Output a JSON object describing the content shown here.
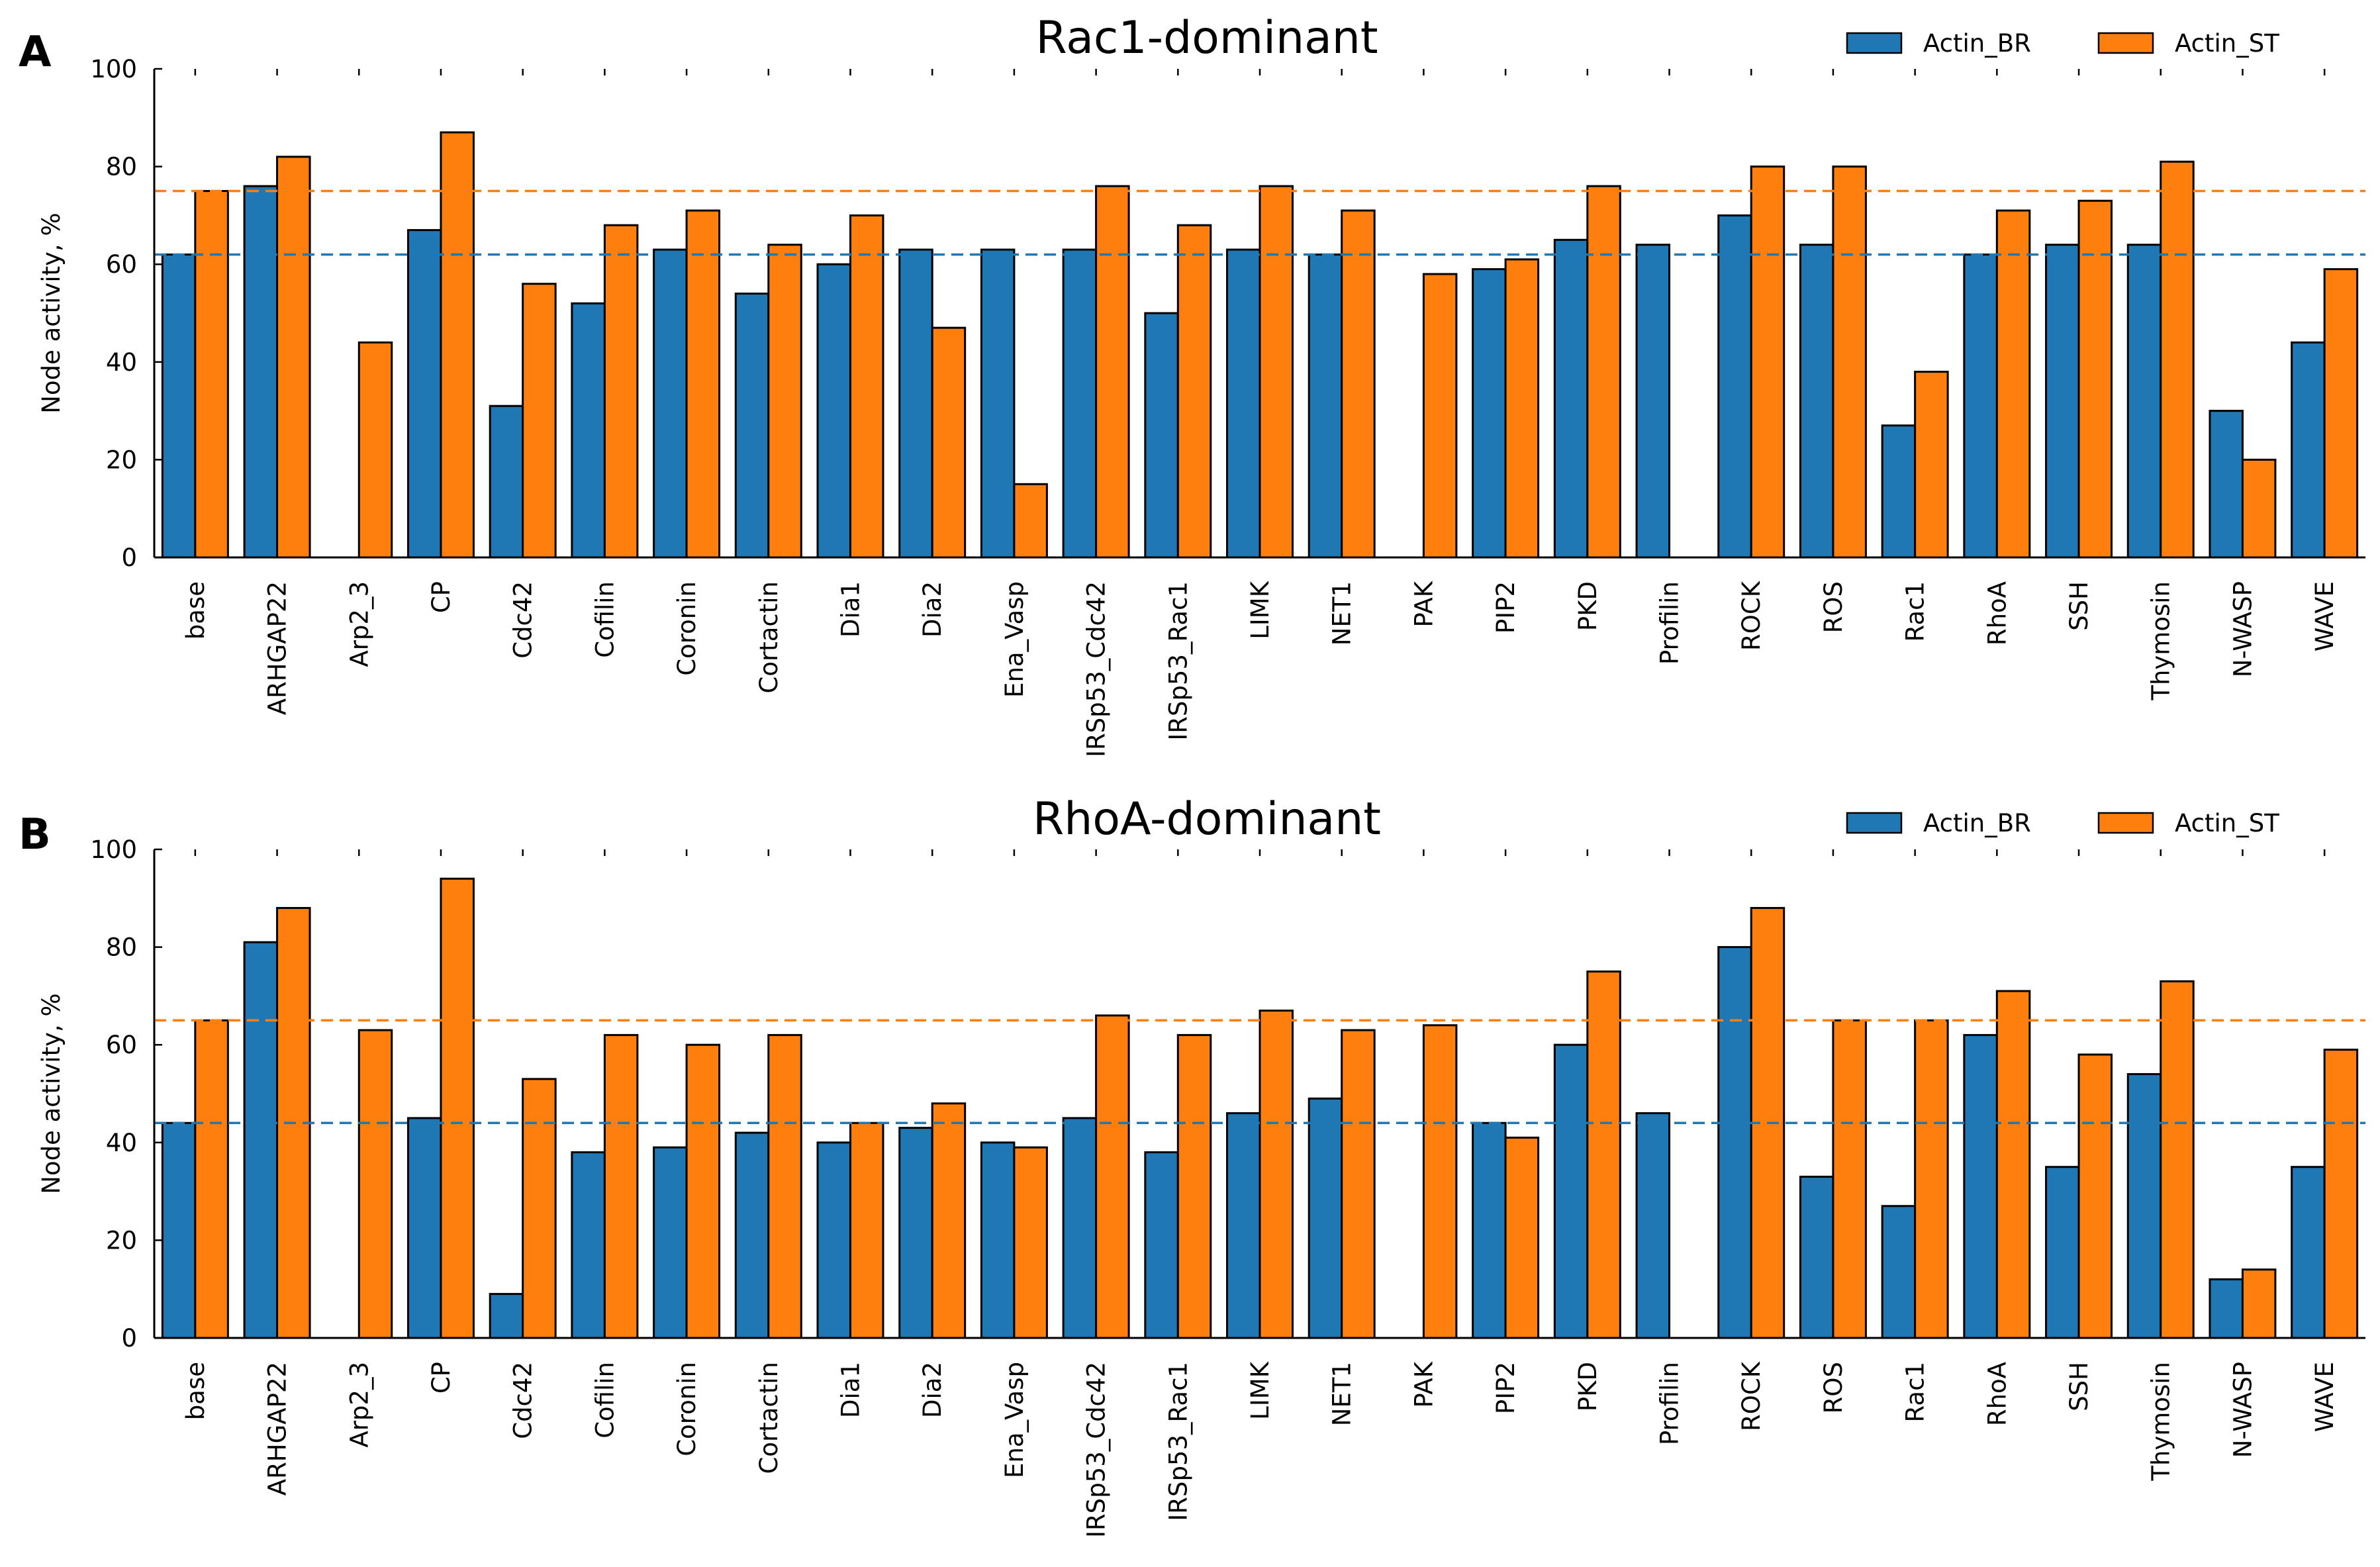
{
  "colors": {
    "actin_br": "#1f77b4",
    "actin_st": "#ff7f0e"
  },
  "chart_data": [
    {
      "panel_label": "A",
      "type": "bar",
      "title": "Rac1-dominant",
      "xlabel": "",
      "ylabel": "Node activity, %",
      "ylim": [
        0,
        100
      ],
      "yticks": [
        0,
        20,
        40,
        60,
        80,
        100
      ],
      "grid": false,
      "legend_position": "top-right",
      "categories": [
        "base",
        "ARHGAP22",
        "Arp2_3",
        "CP",
        "Cdc42",
        "Cofilin",
        "Coronin",
        "Cortactin",
        "Dia1",
        "Dia2",
        "Ena_Vasp",
        "IRSp53_Cdc42",
        "IRSp53_Rac1",
        "LIMK",
        "NET1",
        "PAK",
        "PIP2",
        "PKD",
        "Profilin",
        "ROCK",
        "ROS",
        "Rac1",
        "RhoA",
        "SSH",
        "Thymosin",
        "N-WASP",
        "WAVE"
      ],
      "series": [
        {
          "name": "Actin_BR",
          "color": "#1f77b4",
          "values": [
            62,
            76,
            0,
            67,
            31,
            52,
            63,
            54,
            60,
            63,
            63,
            63,
            50,
            63,
            62,
            0,
            59,
            65,
            64,
            70,
            64,
            27,
            62,
            64,
            64,
            30,
            44
          ]
        },
        {
          "name": "Actin_ST",
          "color": "#ff7f0e",
          "values": [
            75,
            82,
            44,
            87,
            56,
            68,
            71,
            64,
            70,
            47,
            15,
            76,
            68,
            76,
            71,
            58,
            61,
            76,
            0,
            80,
            80,
            38,
            71,
            73,
            81,
            20,
            59
          ]
        }
      ],
      "reference_lines": [
        {
          "series": "Actin_BR",
          "y": 62,
          "style": "dashed"
        },
        {
          "series": "Actin_ST",
          "y": 75,
          "style": "dashed"
        }
      ]
    },
    {
      "panel_label": "B",
      "type": "bar",
      "title": "RhoA-dominant",
      "xlabel": "",
      "ylabel": "Node activity, %",
      "ylim": [
        0,
        100
      ],
      "yticks": [
        0,
        20,
        40,
        60,
        80,
        100
      ],
      "grid": false,
      "legend_position": "top-right",
      "categories": [
        "base",
        "ARHGAP22",
        "Arp2_3",
        "CP",
        "Cdc42",
        "Cofilin",
        "Coronin",
        "Cortactin",
        "Dia1",
        "Dia2",
        "Ena_Vasp",
        "IRSp53_Cdc42",
        "IRSp53_Rac1",
        "LIMK",
        "NET1",
        "PAK",
        "PIP2",
        "PKD",
        "Profilin",
        "ROCK",
        "ROS",
        "Rac1",
        "RhoA",
        "SSH",
        "Thymosin",
        "N-WASP",
        "WAVE"
      ],
      "series": [
        {
          "name": "Actin_BR",
          "color": "#1f77b4",
          "values": [
            44,
            81,
            0,
            45,
            9,
            38,
            39,
            42,
            40,
            43,
            40,
            45,
            38,
            46,
            49,
            0,
            44,
            60,
            46,
            80,
            33,
            27,
            62,
            35,
            54,
            12,
            35
          ]
        },
        {
          "name": "Actin_ST",
          "color": "#ff7f0e",
          "values": [
            65,
            88,
            63,
            94,
            53,
            62,
            60,
            62,
            44,
            48,
            39,
            66,
            62,
            67,
            63,
            64,
            41,
            75,
            0,
            88,
            65,
            65,
            71,
            58,
            73,
            14,
            59
          ]
        }
      ],
      "reference_lines": [
        {
          "series": "Actin_BR",
          "y": 44,
          "style": "dashed"
        },
        {
          "series": "Actin_ST",
          "y": 65,
          "style": "dashed"
        }
      ]
    }
  ]
}
